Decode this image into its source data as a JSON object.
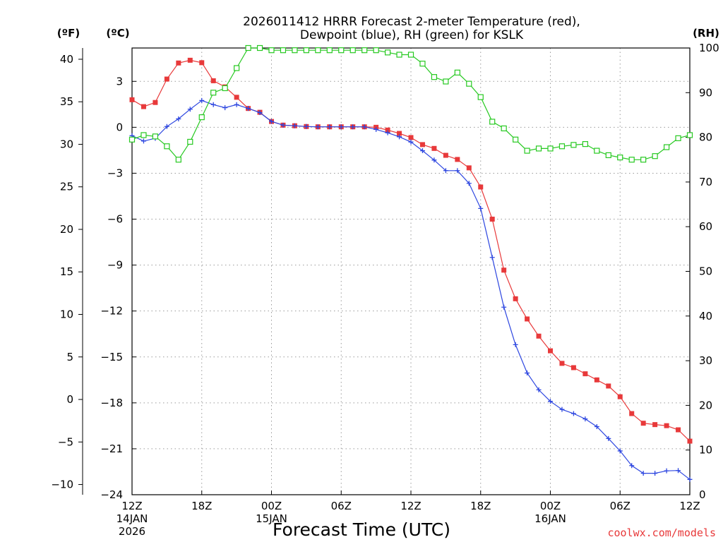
{
  "chart_data": {
    "type": "line",
    "title_lines": [
      "2026011412 HRRR Forecast 2-meter Temperature (red),",
      "Dewpoint (blue), RH (green) for KSLK"
    ],
    "unit_labels": {
      "fahrenheit": "(ºF)",
      "celsius": "(ºC)",
      "rh": "(RH)"
    },
    "xlabel": "Forecast Time (UTC)",
    "credit": "coolwx.com/models",
    "x_range_hours": [
      0,
      48
    ],
    "x_ticks": [
      {
        "hour": 0,
        "label": "12Z",
        "sub": [
          "14JAN",
          "2026"
        ]
      },
      {
        "hour": 6,
        "label": "18Z",
        "sub": []
      },
      {
        "hour": 12,
        "label": "00Z",
        "sub": [
          "15JAN"
        ]
      },
      {
        "hour": 18,
        "label": "06Z",
        "sub": []
      },
      {
        "hour": 24,
        "label": "12Z",
        "sub": []
      },
      {
        "hour": 30,
        "label": "18Z",
        "sub": []
      },
      {
        "hour": 36,
        "label": "00Z",
        "sub": [
          "16JAN"
        ]
      },
      {
        "hour": 42,
        "label": "06Z",
        "sub": []
      },
      {
        "hour": 48,
        "label": "12Z",
        "sub": []
      }
    ],
    "celsius_range": [
      -24,
      5.18
    ],
    "celsius_ticks": [
      "3",
      "0",
      "−3",
      "−6",
      "−9",
      "−12",
      "−15",
      "−18",
      "−21",
      "−24"
    ],
    "fahrenheit_ticks": [
      "40",
      "35",
      "30",
      "25",
      "20",
      "15",
      "10",
      "5",
      "0",
      "−5",
      "−10"
    ],
    "rh_range": [
      0,
      100
    ],
    "rh_ticks": [
      "100",
      "90",
      "80",
      "70",
      "60",
      "50",
      "40",
      "30",
      "20",
      "10",
      "0"
    ],
    "series": [
      {
        "name": "Temperature",
        "color": "#e8393a",
        "marker": "filled-square",
        "unit": "C",
        "values": [
          1.8,
          1.35,
          1.62,
          3.15,
          4.2,
          4.38,
          4.22,
          3.04,
          2.64,
          1.96,
          1.23,
          0.98,
          0.38,
          0.14,
          0.1,
          0.05,
          0.03,
          0.03,
          0.03,
          0.03,
          0.03,
          0.0,
          -0.18,
          -0.4,
          -0.67,
          -1.13,
          -1.38,
          -1.83,
          -2.1,
          -2.65,
          -3.9,
          -6.0,
          -9.33,
          -11.2,
          -12.52,
          -13.64,
          -14.6,
          -15.42,
          -15.7,
          -16.1,
          -16.5,
          -16.9,
          -17.6,
          -18.7,
          -19.33,
          -19.42,
          -19.49,
          -19.76,
          -20.5
        ]
      },
      {
        "name": "Dewpoint",
        "color": "#2d46e0",
        "marker": "plus",
        "unit": "C",
        "values": [
          -0.55,
          -0.9,
          -0.72,
          0.05,
          0.55,
          1.18,
          1.75,
          1.48,
          1.28,
          1.48,
          1.23,
          0.96,
          0.38,
          0.14,
          0.1,
          0.05,
          0.03,
          0.03,
          0.03,
          0.03,
          0.03,
          -0.14,
          -0.36,
          -0.62,
          -0.96,
          -1.53,
          -2.14,
          -2.83,
          -2.83,
          -3.66,
          -5.3,
          -8.5,
          -11.75,
          -14.2,
          -16.05,
          -17.15,
          -17.9,
          -18.43,
          -18.7,
          -19.05,
          -19.55,
          -20.33,
          -21.14,
          -22.1,
          -22.6,
          -22.6,
          -22.44,
          -22.42,
          -23.0
        ]
      },
      {
        "name": "Relative Humidity",
        "color": "#27c921",
        "marker": "open-square",
        "unit": "%",
        "values": [
          79.5,
          80.5,
          80.2,
          78,
          75,
          79,
          84.5,
          90,
          91,
          95.5,
          100,
          100,
          99.5,
          99.5,
          99.5,
          99.5,
          99.5,
          99.5,
          99.5,
          99.5,
          99.5,
          99.5,
          99,
          98.5,
          98.5,
          96.5,
          93.5,
          92.5,
          94.5,
          92,
          89,
          83.5,
          82,
          79.5,
          77,
          77.5,
          77.5,
          78,
          78.3,
          78.5,
          77,
          76,
          75.5,
          75,
          75,
          75.8,
          77.8,
          79.8,
          80.5
        ]
      }
    ],
    "grid": true
  }
}
